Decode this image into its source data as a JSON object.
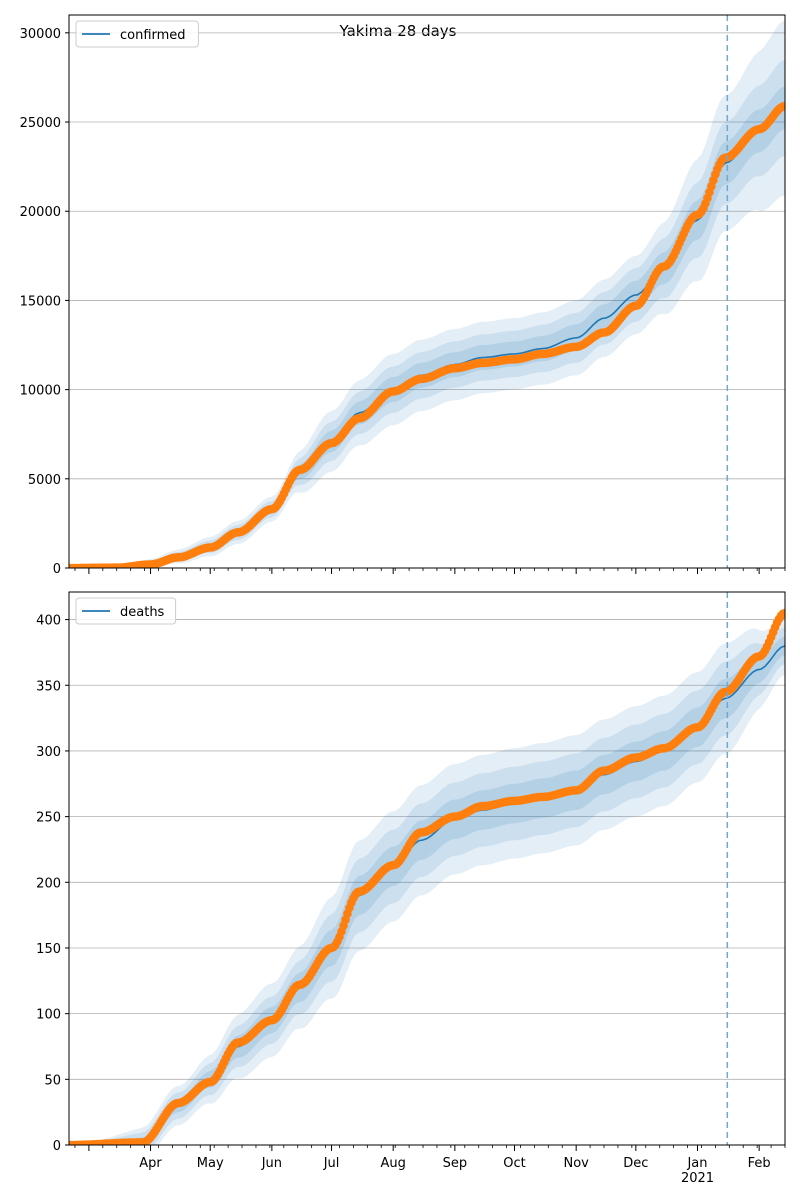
{
  "figure": {
    "title": "Yakima 28 days"
  },
  "chart_data": [
    {
      "type": "line",
      "legend": {
        "label": "confirmed",
        "placement": "upper-left",
        "color": "#1f77b4"
      },
      "xlim": [
        "2020-02-20",
        "2021-02-14"
      ],
      "ylim": [
        0,
        31000
      ],
      "yticks": [
        0,
        5000,
        10000,
        15000,
        20000,
        25000,
        30000
      ],
      "grid": "y",
      "forecast_start": "2021-01-16",
      "series_color": "#1f77b4",
      "observed_color": "#ff7f0e",
      "model_knots": [
        {
          "date": "2020-02-20",
          "y": 0
        },
        {
          "date": "2020-03-15",
          "y": 30
        },
        {
          "date": "2020-04-01",
          "y": 250
        },
        {
          "date": "2020-04-15",
          "y": 650
        },
        {
          "date": "2020-05-01",
          "y": 1200
        },
        {
          "date": "2020-05-15",
          "y": 2000
        },
        {
          "date": "2020-06-01",
          "y": 3300
        },
        {
          "date": "2020-06-15",
          "y": 5400
        },
        {
          "date": "2020-07-01",
          "y": 7100
        },
        {
          "date": "2020-07-15",
          "y": 8700
        },
        {
          "date": "2020-08-01",
          "y": 10000
        },
        {
          "date": "2020-08-15",
          "y": 10800
        },
        {
          "date": "2020-09-01",
          "y": 11400
        },
        {
          "date": "2020-09-15",
          "y": 11800
        },
        {
          "date": "2020-10-01",
          "y": 12000
        },
        {
          "date": "2020-10-15",
          "y": 12300
        },
        {
          "date": "2020-11-01",
          "y": 12900
        },
        {
          "date": "2020-11-15",
          "y": 14000
        },
        {
          "date": "2020-12-01",
          "y": 15300
        },
        {
          "date": "2020-12-15",
          "y": 16800
        },
        {
          "date": "2021-01-01",
          "y": 19500
        },
        {
          "date": "2021-01-15",
          "y": 22700
        },
        {
          "date": "2021-02-01",
          "y": 24500
        },
        {
          "date": "2021-02-14",
          "y": 25800
        }
      ],
      "observed_knots": [
        {
          "date": "2020-02-20",
          "y": 0
        },
        {
          "date": "2020-03-15",
          "y": 20
        },
        {
          "date": "2020-04-01",
          "y": 200
        },
        {
          "date": "2020-04-15",
          "y": 600
        },
        {
          "date": "2020-05-01",
          "y": 1150
        },
        {
          "date": "2020-05-15",
          "y": 2000
        },
        {
          "date": "2020-06-01",
          "y": 3300
        },
        {
          "date": "2020-06-15",
          "y": 5500
        },
        {
          "date": "2020-07-01",
          "y": 7000
        },
        {
          "date": "2020-07-15",
          "y": 8400
        },
        {
          "date": "2020-08-01",
          "y": 9900
        },
        {
          "date": "2020-08-15",
          "y": 10600
        },
        {
          "date": "2020-09-01",
          "y": 11200
        },
        {
          "date": "2020-09-15",
          "y": 11500
        },
        {
          "date": "2020-10-01",
          "y": 11700
        },
        {
          "date": "2020-10-15",
          "y": 12000
        },
        {
          "date": "2020-11-01",
          "y": 12400
        },
        {
          "date": "2020-11-15",
          "y": 13200
        },
        {
          "date": "2020-12-01",
          "y": 14700
        },
        {
          "date": "2020-12-15",
          "y": 16900
        },
        {
          "date": "2021-01-01",
          "y": 19800
        },
        {
          "date": "2021-01-15",
          "y": 23000
        },
        {
          "date": "2021-02-01",
          "y": 24600
        },
        {
          "date": "2021-02-14",
          "y": 25900
        }
      ],
      "band_knots": [
        {
          "date": "2020-02-20",
          "widths": [
            0,
            0,
            0
          ]
        },
        {
          "date": "2020-06-01",
          "widths": [
            250,
            450,
            700
          ]
        },
        {
          "date": "2020-07-01",
          "widths": [
            600,
            1100,
            1700
          ]
        },
        {
          "date": "2020-08-01",
          "widths": [
            700,
            1300,
            2000
          ]
        },
        {
          "date": "2020-10-01",
          "widths": [
            700,
            1300,
            2000
          ]
        },
        {
          "date": "2020-12-01",
          "widths": [
            800,
            1500,
            2200
          ]
        },
        {
          "date": "2021-01-15",
          "widths": [
            1200,
            2300,
            3800
          ]
        },
        {
          "date": "2021-02-14",
          "widths": [
            1200,
            2700,
            4900
          ]
        }
      ]
    },
    {
      "type": "line",
      "legend": {
        "label": "deaths",
        "placement": "upper-left",
        "color": "#1f77b4"
      },
      "xlim": [
        "2020-02-20",
        "2021-02-14"
      ],
      "ylim": [
        0,
        421
      ],
      "yticks": [
        0,
        50,
        100,
        150,
        200,
        250,
        300,
        350,
        400
      ],
      "grid": "y",
      "forecast_start": "2021-01-16",
      "series_color": "#1f77b4",
      "observed_color": "#ff7f0e",
      "model_knots": [
        {
          "date": "2020-02-20",
          "y": 0
        },
        {
          "date": "2020-03-28",
          "y": 2
        },
        {
          "date": "2020-04-15",
          "y": 30
        },
        {
          "date": "2020-05-01",
          "y": 50
        },
        {
          "date": "2020-05-15",
          "y": 75
        },
        {
          "date": "2020-06-01",
          "y": 95
        },
        {
          "date": "2020-06-15",
          "y": 120
        },
        {
          "date": "2020-07-01",
          "y": 150
        },
        {
          "date": "2020-07-15",
          "y": 190
        },
        {
          "date": "2020-08-01",
          "y": 212
        },
        {
          "date": "2020-08-15",
          "y": 232
        },
        {
          "date": "2020-09-01",
          "y": 248
        },
        {
          "date": "2020-09-15",
          "y": 255
        },
        {
          "date": "2020-10-01",
          "y": 260
        },
        {
          "date": "2020-10-15",
          "y": 264
        },
        {
          "date": "2020-11-01",
          "y": 270
        },
        {
          "date": "2020-11-15",
          "y": 282
        },
        {
          "date": "2020-12-01",
          "y": 292
        },
        {
          "date": "2020-12-15",
          "y": 300
        },
        {
          "date": "2021-01-01",
          "y": 318
        },
        {
          "date": "2021-01-15",
          "y": 340
        },
        {
          "date": "2021-02-01",
          "y": 362
        },
        {
          "date": "2021-02-14",
          "y": 380
        }
      ],
      "observed_knots": [
        {
          "date": "2020-02-20",
          "y": 0
        },
        {
          "date": "2020-03-28",
          "y": 2
        },
        {
          "date": "2020-04-15",
          "y": 32
        },
        {
          "date": "2020-05-01",
          "y": 48
        },
        {
          "date": "2020-05-15",
          "y": 78
        },
        {
          "date": "2020-06-01",
          "y": 95
        },
        {
          "date": "2020-06-15",
          "y": 122
        },
        {
          "date": "2020-07-01",
          "y": 150
        },
        {
          "date": "2020-07-15",
          "y": 193
        },
        {
          "date": "2020-08-01",
          "y": 213
        },
        {
          "date": "2020-08-15",
          "y": 238
        },
        {
          "date": "2020-09-01",
          "y": 250
        },
        {
          "date": "2020-09-15",
          "y": 258
        },
        {
          "date": "2020-10-01",
          "y": 262
        },
        {
          "date": "2020-10-15",
          "y": 265
        },
        {
          "date": "2020-11-01",
          "y": 270
        },
        {
          "date": "2020-11-15",
          "y": 285
        },
        {
          "date": "2020-12-01",
          "y": 295
        },
        {
          "date": "2020-12-15",
          "y": 302
        },
        {
          "date": "2021-01-01",
          "y": 318
        },
        {
          "date": "2021-01-15",
          "y": 345
        },
        {
          "date": "2021-02-01",
          "y": 372
        },
        {
          "date": "2021-02-14",
          "y": 405
        }
      ],
      "band_knots": [
        {
          "date": "2020-02-20",
          "widths": [
            0,
            0,
            0
          ]
        },
        {
          "date": "2020-04-15",
          "widths": [
            5,
            10,
            15
          ]
        },
        {
          "date": "2020-06-01",
          "widths": [
            10,
            18,
            28
          ]
        },
        {
          "date": "2020-07-15",
          "widths": [
            15,
            28,
            42
          ]
        },
        {
          "date": "2020-09-01",
          "widths": [
            15,
            28,
            42
          ]
        },
        {
          "date": "2020-11-01",
          "widths": [
            15,
            28,
            42
          ]
        },
        {
          "date": "2021-01-15",
          "widths": [
            15,
            28,
            42
          ]
        },
        {
          "date": "2021-02-14",
          "widths": [
            7,
            14,
            22
          ]
        }
      ]
    }
  ],
  "x_axis": {
    "month_labels": [
      {
        "date": "2020-04-01",
        "label": "Apr"
      },
      {
        "date": "2020-05-01",
        "label": "May"
      },
      {
        "date": "2020-06-01",
        "label": "Jun"
      },
      {
        "date": "2020-07-01",
        "label": "Jul"
      },
      {
        "date": "2020-08-01",
        "label": "Aug"
      },
      {
        "date": "2020-09-01",
        "label": "Sep"
      },
      {
        "date": "2020-10-01",
        "label": "Oct"
      },
      {
        "date": "2020-11-01",
        "label": "Nov"
      },
      {
        "date": "2020-12-01",
        "label": "Dec"
      },
      {
        "date": "2021-01-01",
        "label": "Jan"
      },
      {
        "date": "2021-02-01",
        "label": "Feb"
      }
    ],
    "year_label": {
      "date": "2021-01-01",
      "label": "2021"
    }
  }
}
